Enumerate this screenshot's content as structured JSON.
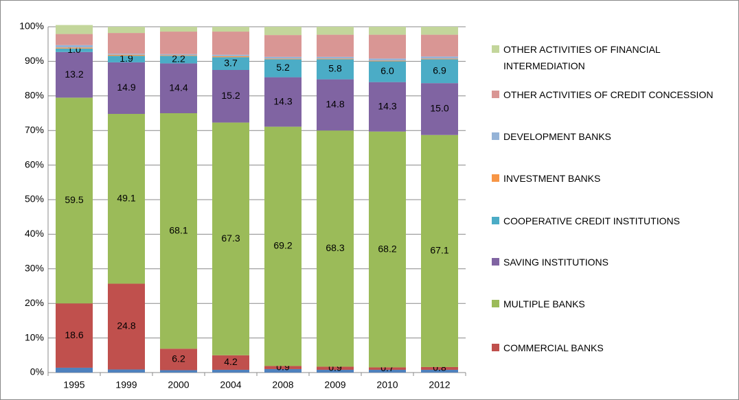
{
  "chart_data": {
    "type": "stacked_bar",
    "categories": [
      "1995",
      "1999",
      "2000",
      "2004",
      "2008",
      "2009",
      "2010",
      "2012"
    ],
    "ylim": [
      0,
      100
    ],
    "yticks": [
      {
        "value": 0,
        "label": "0%"
      },
      {
        "value": 10,
        "label": "10%"
      },
      {
        "value": 20,
        "label": "20%"
      },
      {
        "value": 30,
        "label": "30%"
      },
      {
        "value": 40,
        "label": "40%"
      },
      {
        "value": 50,
        "label": "50%"
      },
      {
        "value": 60,
        "label": "60%"
      },
      {
        "value": 70,
        "label": "70%"
      },
      {
        "value": 80,
        "label": "80%"
      },
      {
        "value": 90,
        "label": "90%"
      },
      {
        "value": 100,
        "label": "100%"
      }
    ],
    "grid": true,
    "series": [
      {
        "color": "#4f81bd",
        "values": [
          1.4,
          0.9,
          0.7,
          0.8,
          1.0,
          0.8,
          0.8,
          0.8
        ]
      },
      {
        "name": "COMMERCIAL BANKS",
        "color": "#c0504d",
        "values": [
          18.6,
          24.8,
          6.2,
          4.2,
          0.9,
          0.9,
          0.7,
          0.8
        ],
        "value_labels": [
          "18.6",
          "24.8",
          "6.2",
          "4.2",
          "0.9",
          "0.9",
          "0.7",
          "0.8"
        ]
      },
      {
        "name": "MULTIPLE BANKS",
        "color": "#9bbb59",
        "values": [
          59.5,
          49.1,
          68.1,
          67.3,
          69.2,
          68.3,
          68.2,
          67.1
        ],
        "value_labels": [
          "59.5",
          "49.1",
          "68.1",
          "67.3",
          "69.2",
          "68.3",
          "68.2",
          "67.1"
        ]
      },
      {
        "name": "SAVING INSTITUTIONS",
        "color": "#8064a2",
        "values": [
          13.2,
          14.9,
          14.4,
          15.2,
          14.3,
          14.8,
          14.3,
          15.0
        ],
        "value_labels": [
          "13.2",
          "14.9",
          "14.4",
          "15.2",
          "14.3",
          "14.8",
          "14.3",
          "15.0"
        ]
      },
      {
        "name": "COOPERATIVE CREDIT INSTITUTIONS",
        "color": "#4bacc6",
        "values": [
          1.0,
          1.9,
          2.2,
          3.7,
          5.2,
          5.8,
          6.0,
          6.9
        ],
        "value_labels": [
          "1.0",
          "1.9",
          "2.2",
          "3.7",
          "5.2",
          "5.8",
          "6.0",
          "6.9"
        ]
      },
      {
        "name": "INVESTMENT BANKS",
        "color": "#f79646",
        "values": [
          0.3,
          0.3,
          0.2,
          0.3,
          0.2,
          0.2,
          0.2,
          0.2
        ]
      },
      {
        "name": "DEVELOPMENT BANKS",
        "color": "#95b3d7",
        "values": [
          0.7,
          0.3,
          0.3,
          0.4,
          0.5,
          0.5,
          0.6,
          0.6
        ]
      },
      {
        "name": "OTHER ACTIVITIES OF CREDIT CONCESSION",
        "color": "#d99694",
        "values": [
          3.2,
          6.0,
          6.5,
          6.7,
          6.3,
          6.4,
          6.9,
          6.3
        ]
      },
      {
        "name": "OTHER ACTIVITIES OF FINANCIAL INTERMEDIATION",
        "color": "#c3d69b",
        "values": [
          2.6,
          1.8,
          1.4,
          1.4,
          2.4,
          2.3,
          2.3,
          2.3
        ]
      }
    ]
  }
}
